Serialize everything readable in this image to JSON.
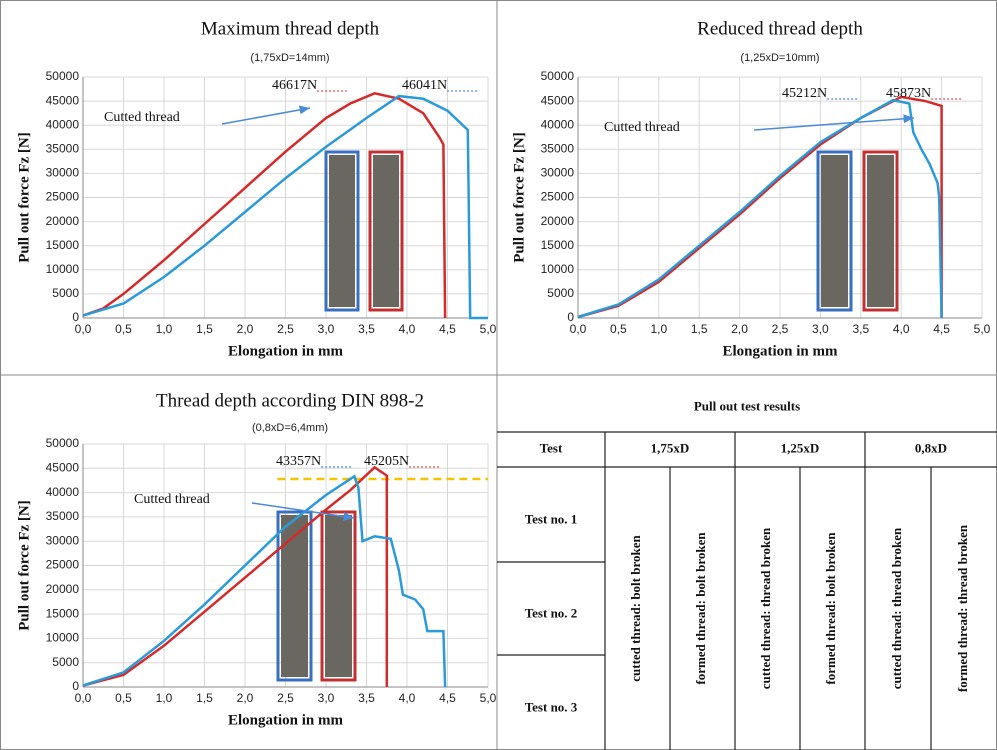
{
  "chart_data": [
    {
      "type": "line",
      "title": "Maximum thread depth",
      "subtitle": "(1,75xD=14mm)",
      "xlabel": "Elongation in mm",
      "ylabel": "Pull out force Fz [N]",
      "xlim": [
        0,
        5
      ],
      "ylim": [
        0,
        50000
      ],
      "grid": true,
      "xticks": [
        {
          "value": 0,
          "label": "0,0"
        },
        {
          "value": 0.5,
          "label": "0,5"
        },
        {
          "value": 1,
          "label": "1,0"
        },
        {
          "value": 1.5,
          "label": "1,5"
        },
        {
          "value": 2,
          "label": "2,0"
        },
        {
          "value": 2.5,
          "label": "2,5"
        },
        {
          "value": 3,
          "label": "3,0"
        },
        {
          "value": 3.5,
          "label": "3,5"
        },
        {
          "value": 4,
          "label": "4,0"
        },
        {
          "value": 4.5,
          "label": "4,5"
        },
        {
          "value": 5,
          "label": "5,0"
        }
      ],
      "yticks": [
        0,
        5000,
        10000,
        15000,
        20000,
        25000,
        30000,
        35000,
        40000,
        45000,
        50000
      ],
      "series": [
        {
          "color": "#d42a2a",
          "x": [
            0,
            0.25,
            0.5,
            1,
            1.5,
            2,
            2.5,
            3,
            3.3,
            3.6,
            3.9,
            4.2,
            4.4,
            4.45,
            4.47
          ],
          "values": [
            500,
            2000,
            5000,
            12000,
            19500,
            27000,
            34500,
            41500,
            44500,
            46617,
            45500,
            42500,
            37500,
            36000,
            0
          ]
        },
        {
          "color": "#2a9ad8",
          "x": [
            0,
            0.5,
            1,
            1.5,
            2,
            2.5,
            3,
            3.5,
            3.9,
            4.2,
            4.5,
            4.75,
            4.78,
            5
          ],
          "values": [
            500,
            3000,
            8500,
            15000,
            22000,
            29000,
            35500,
            41500,
            46041,
            45500,
            43000,
            39000,
            0,
            0
          ]
        }
      ],
      "annotations": [
        {
          "text": "46617N",
          "color": "#d42a2a"
        },
        {
          "text": "46041N",
          "color": "#2a6ad8"
        },
        {
          "text": "Cutted thread",
          "color": "#111111"
        }
      ]
    },
    {
      "type": "line",
      "title": "Reduced thread depth",
      "subtitle": "(1,25xD=10mm)",
      "xlabel": "Elongation in mm",
      "ylabel": "Pull out force Fz [N]",
      "xlim": [
        0,
        5
      ],
      "ylim": [
        0,
        50000
      ],
      "grid": true,
      "xticks": [
        {
          "value": 0,
          "label": "0,0"
        },
        {
          "value": 0.5,
          "label": "0,5"
        },
        {
          "value": 1,
          "label": "1,0"
        },
        {
          "value": 1.5,
          "label": "1,5"
        },
        {
          "value": 2,
          "label": "2,0"
        },
        {
          "value": 2.5,
          "label": "2,5"
        },
        {
          "value": 3,
          "label": "3,0"
        },
        {
          "value": 3.5,
          "label": "3,5"
        },
        {
          "value": 4,
          "label": "4,0"
        },
        {
          "value": 4.5,
          "label": "4,5"
        },
        {
          "value": 5,
          "label": "5,0"
        }
      ],
      "yticks": [
        0,
        5000,
        10000,
        15000,
        20000,
        25000,
        30000,
        35000,
        40000,
        45000,
        50000
      ],
      "series": [
        {
          "color": "#d42a2a",
          "x": [
            0,
            0.5,
            1,
            1.5,
            2,
            2.5,
            3,
            3.5,
            4,
            4.3,
            4.5,
            4.5
          ],
          "values": [
            200,
            2500,
            7500,
            14500,
            21500,
            29000,
            36000,
            41500,
            45873,
            45000,
            44000,
            0
          ]
        },
        {
          "color": "#2a9ad8",
          "x": [
            0,
            0.5,
            1,
            1.5,
            2,
            2.5,
            3,
            3.5,
            3.9,
            4.1,
            4.15,
            4.25,
            4.35,
            4.45,
            4.47,
            4.5
          ],
          "values": [
            200,
            2800,
            8000,
            15000,
            22000,
            29500,
            36500,
            41500,
            45212,
            44500,
            38500,
            35000,
            32000,
            28000,
            25000,
            0
          ]
        }
      ],
      "annotations": [
        {
          "text": "45212N",
          "color": "#2a6ad8"
        },
        {
          "text": "45873N",
          "color": "#d42a2a"
        },
        {
          "text": "Cutted thread",
          "color": "#111111"
        }
      ]
    },
    {
      "type": "line",
      "title": "Thread depth according DIN 898-2",
      "subtitle": "(0,8xD=6,4mm)",
      "xlabel": "Elongation in mm",
      "ylabel": "Pull out force Fz [N]",
      "xlim": [
        0,
        5
      ],
      "ylim": [
        0,
        50000
      ],
      "grid": true,
      "xticks": [
        {
          "value": 0,
          "label": "0,0"
        },
        {
          "value": 0.5,
          "label": "0,5"
        },
        {
          "value": 1,
          "label": "1,0"
        },
        {
          "value": 1.5,
          "label": "1,5"
        },
        {
          "value": 2,
          "label": "2,0"
        },
        {
          "value": 2.5,
          "label": "2,5"
        },
        {
          "value": 3,
          "label": "3,0"
        },
        {
          "value": 3.5,
          "label": "3,5"
        },
        {
          "value": 4,
          "label": "4,0"
        },
        {
          "value": 4.5,
          "label": "4,5"
        },
        {
          "value": 5,
          "label": "5,0"
        }
      ],
      "yticks": [
        0,
        5000,
        10000,
        15000,
        20000,
        25000,
        30000,
        35000,
        40000,
        45000,
        50000
      ],
      "hline": {
        "value": 42800,
        "color": "#f5c400"
      },
      "series": [
        {
          "color": "#d42a2a",
          "x": [
            0,
            0.5,
            1,
            1.5,
            2,
            2.5,
            3,
            3.3,
            3.6,
            3.75,
            3.75
          ],
          "values": [
            300,
            2500,
            8500,
            15500,
            22500,
            29500,
            36500,
            40500,
            45205,
            43500,
            0
          ]
        },
        {
          "color": "#2a9ad8",
          "x": [
            0,
            0.5,
            1,
            1.5,
            2,
            2.5,
            3,
            3.35,
            3.4,
            3.45,
            3.6,
            3.8,
            3.9,
            3.95,
            4.1,
            4.2,
            4.25,
            4.45,
            4.47
          ],
          "values": [
            300,
            3000,
            9500,
            17000,
            25000,
            33000,
            39500,
            43357,
            41000,
            30000,
            31000,
            30500,
            24000,
            19000,
            18000,
            16000,
            11500,
            11500,
            0
          ]
        }
      ],
      "annotations": [
        {
          "text": "43357N",
          "color": "#2a6ad8"
        },
        {
          "text": "45205N",
          "color": "#d42a2a"
        },
        {
          "text": "Cutted thread",
          "color": "#111111"
        }
      ]
    }
  ],
  "table": {
    "title": "Pull out test results",
    "header": [
      "Test",
      "1,75xD",
      "1,25xD",
      "0,8xD"
    ],
    "rows": [
      "Test no. 1",
      "Test no. 2",
      "Test no. 3"
    ],
    "results": [
      {
        "text": "cutted thread: bolt broken",
        "color": "#1a1ae0"
      },
      {
        "text": "formed thread: bolt broken",
        "color": "#c82828"
      },
      {
        "text": "cutted thread: thread broken",
        "color": "#1a1ae0"
      },
      {
        "text": "formed thread: bolt broken",
        "color": "#c82828"
      },
      {
        "text": "cutted thread: thread broken",
        "color": "#1a1ae0"
      },
      {
        "text": "formed thread: thread broken",
        "color": "#c82828"
      }
    ]
  }
}
